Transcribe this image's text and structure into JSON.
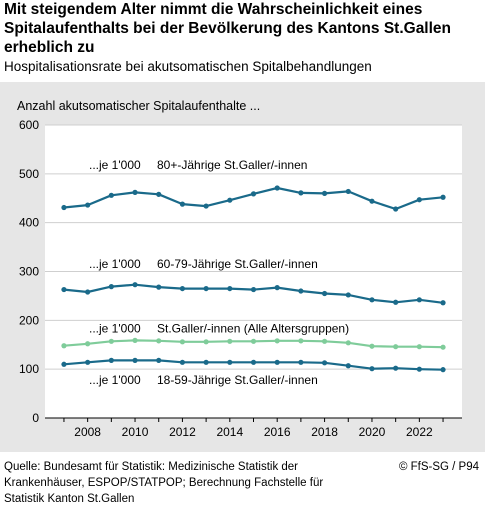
{
  "header": {
    "title": "Mit steigendem Alter nimmt die Wahrscheinlichkeit eines Spitalaufenthalts bei der Bevölkerung des Kantons St.Gallen erheblich zu",
    "subtitle": "Hospitalisationsrate bei akutsomatischen Spitalbehandlungen"
  },
  "footer": {
    "source": "Quelle: Bundesamt für Statistik: Medizinische Statistik der Krankenhäuser, ESPOP/STATPOP; Berechnung Fachstelle für Statistik Kanton St.Gallen",
    "credit": "© FfS-SG / P94"
  },
  "colors": {
    "panel": "#e6e6e6",
    "plot": "#ffffff",
    "dark_blue": "#1a6a8a",
    "light_green": "#7fcc9a"
  },
  "chart_data": {
    "type": "line",
    "ylabel": "Anzahl akutsomatischer Spitalaufenthalte ...",
    "ylim": [
      0,
      600
    ],
    "yticks": [
      0,
      100,
      200,
      300,
      400,
      500,
      600
    ],
    "xlim": [
      2006.2,
      2023.8
    ],
    "xticks": [
      2008,
      2010,
      2012,
      2014,
      2016,
      2018,
      2020,
      2022
    ],
    "grid": "horizontal",
    "x": [
      2007,
      2008,
      2009,
      2010,
      2011,
      2012,
      2013,
      2014,
      2015,
      2016,
      2017,
      2018,
      2019,
      2020,
      2021,
      2022,
      2023
    ],
    "series": [
      {
        "name": "80+-Jährige St.Galler/-innen",
        "prefix": "...je 1'000",
        "color": "#1a6a8a",
        "label_value": 518,
        "values": [
          431,
          436,
          456,
          462,
          458,
          438,
          434,
          446,
          459,
          471,
          461,
          460,
          464,
          444,
          428,
          447,
          452
        ]
      },
      {
        "name": "60-79-Jährige St.Galler/-innen",
        "prefix": "...je 1'000",
        "color": "#1a6a8a",
        "label_value": 315,
        "values": [
          263,
          258,
          269,
          273,
          268,
          265,
          265,
          265,
          263,
          267,
          260,
          255,
          252,
          242,
          237,
          242,
          236
        ]
      },
      {
        "name": "St.Galler/-innen (Alle Altersgruppen)",
        "prefix": "...je 1'000",
        "color": "#7fcc9a",
        "label_value": 183,
        "values": [
          148,
          152,
          157,
          159,
          158,
          156,
          156,
          157,
          157,
          158,
          158,
          157,
          154,
          147,
          146,
          146,
          145
        ]
      },
      {
        "name": "18-59-Jährige St.Galler/-innen",
        "prefix": "...je 1'000",
        "color": "#1a6a8a",
        "label_value": 78,
        "values": [
          110,
          114,
          118,
          118,
          118,
          114,
          114,
          114,
          114,
          114,
          114,
          113,
          107,
          101,
          102,
          100,
          99
        ]
      }
    ]
  }
}
